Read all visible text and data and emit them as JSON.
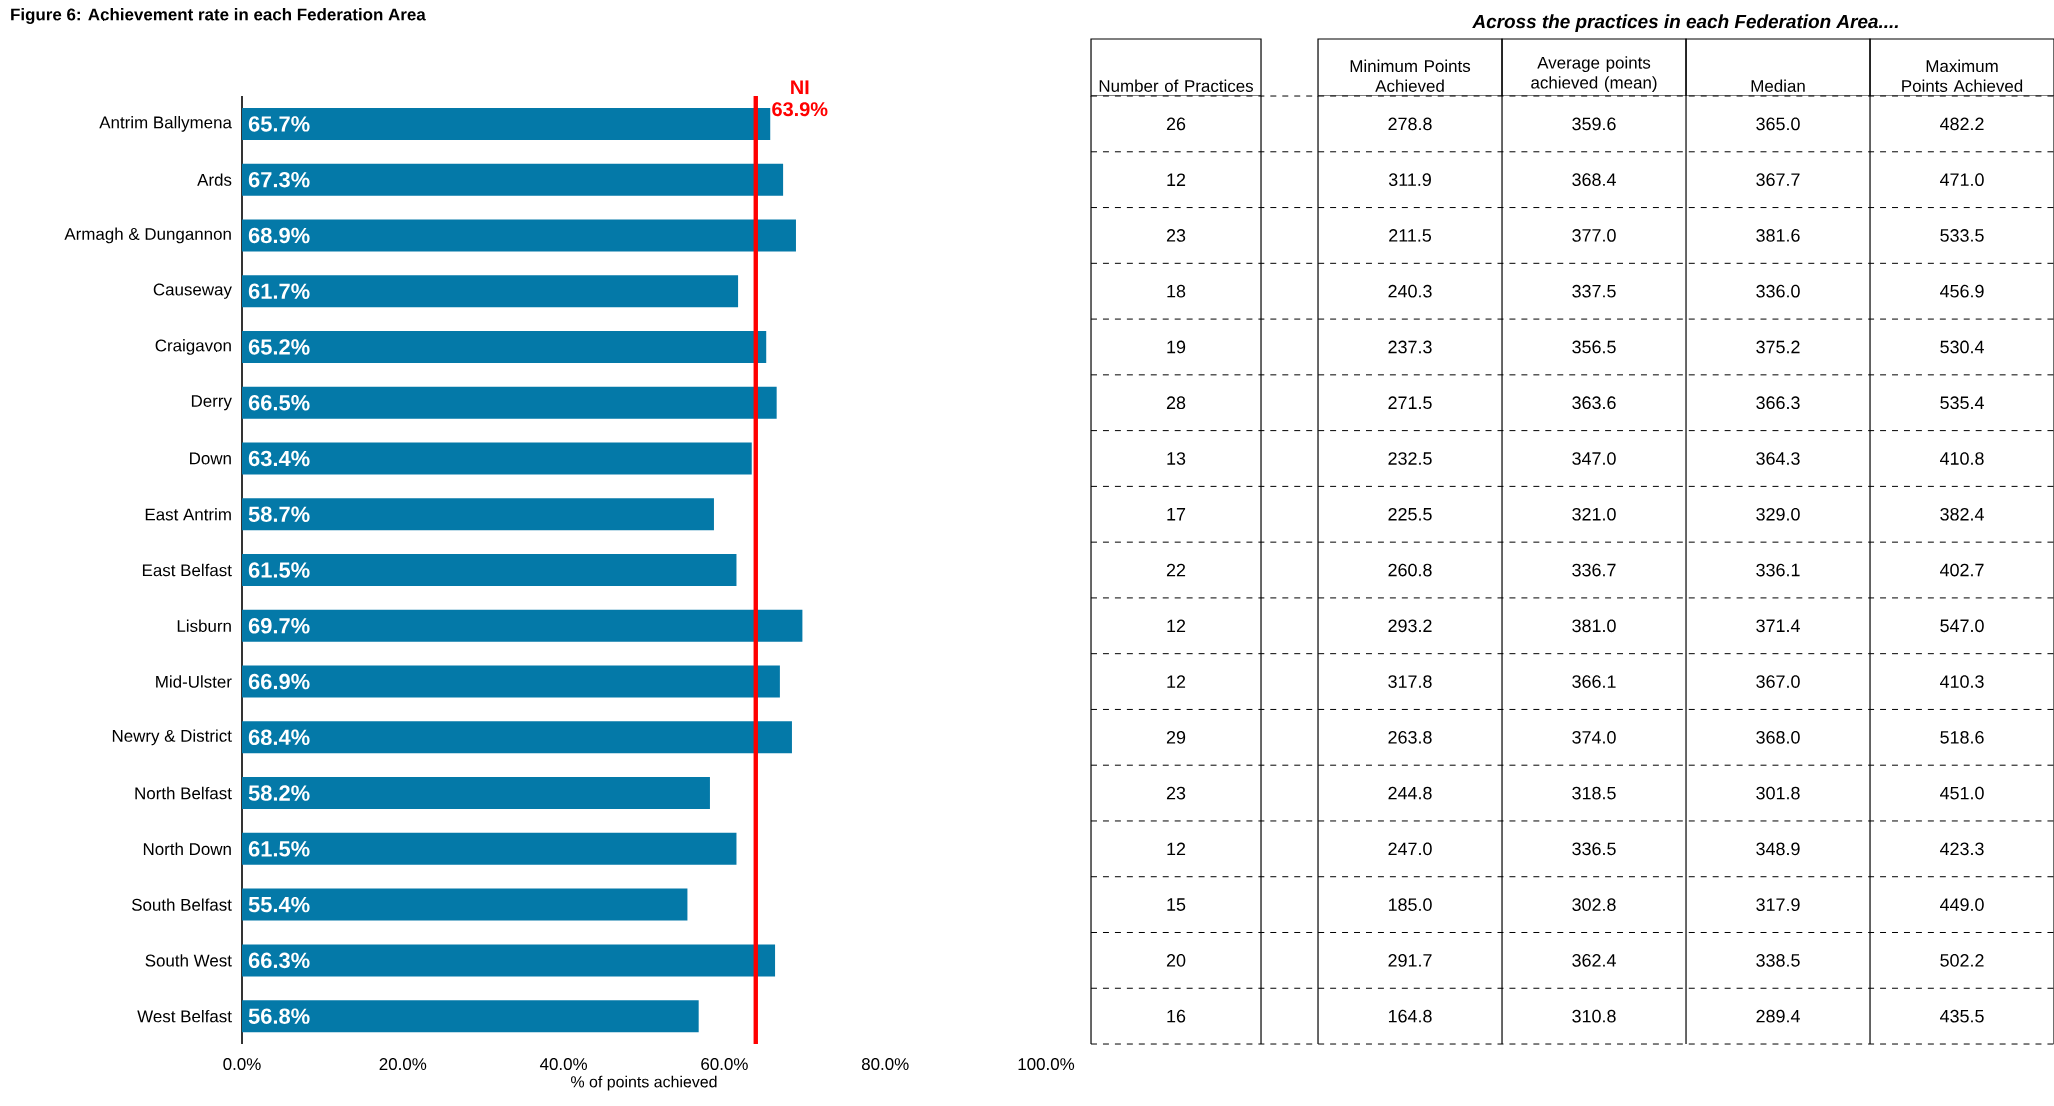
{
  "chart_data": [
    {
      "type": "bar",
      "orientation": "horizontal",
      "title": "Figure 6: Achievement rate in each Federation Area",
      "xlabel": "% of points achieved",
      "categories": [
        "Antrim Ballymena",
        "Ards",
        "Armagh & Dungannon",
        "Causeway",
        "Craigavon",
        "Derry",
        "Down",
        "East Antrim",
        "East Belfast",
        "Lisburn",
        "Mid-Ulster",
        "Newry & District",
        "North Belfast",
        "North Down",
        "South Belfast",
        "South West",
        "West Belfast"
      ],
      "values": [
        65.7,
        67.3,
        68.9,
        61.7,
        65.2,
        66.5,
        63.4,
        58.7,
        61.5,
        69.7,
        66.9,
        68.4,
        58.2,
        61.5,
        55.4,
        66.3,
        56.8
      ],
      "value_labels": [
        "65.7%",
        "67.3%",
        "68.9%",
        "61.7%",
        "65.2%",
        "66.5%",
        "63.4%",
        "58.7%",
        "61.5%",
        "69.7%",
        "66.9%",
        "68.4%",
        "58.2%",
        "61.5%",
        "55.4%",
        "66.3%",
        "56.8%"
      ],
      "color": "#0479a8",
      "xlim": [
        0,
        100
      ],
      "xticks": [
        {
          "value": 0,
          "label": "0.0%"
        },
        {
          "value": 20,
          "label": "20.0%"
        },
        {
          "value": 40,
          "label": "40.0%"
        },
        {
          "value": 60,
          "label": "60.0%"
        },
        {
          "value": 80,
          "label": "80.0%"
        },
        {
          "value": 100,
          "label": "100.0%"
        }
      ],
      "ref_lines": [
        {
          "axis": "x",
          "value": 63.9,
          "label": "NI 63.9%",
          "color": "#ff0000"
        }
      ],
      "grid": false
    },
    {
      "type": "other",
      "title": "Across the practices in each Federation Area....",
      "categories": [
        "Number of Practices",
        null,
        "Minimum Points Achieved",
        "Average points achieved (mean)",
        "Median",
        "Maximum Points Achieved"
      ],
      "cell_labels": [
        [
          "26",
          null,
          "278.8",
          "359.6",
          "365.0",
          "482.2"
        ],
        [
          "12",
          null,
          "311.9",
          "368.4",
          "367.7",
          "471.0"
        ],
        [
          "23",
          null,
          "211.5",
          "377.0",
          "381.6",
          "533.5"
        ],
        [
          "18",
          null,
          "240.3",
          "337.5",
          "336.0",
          "456.9"
        ],
        [
          "19",
          null,
          "237.3",
          "356.5",
          "375.2",
          "530.4"
        ],
        [
          "28",
          null,
          "271.5",
          "363.6",
          "366.3",
          "535.4"
        ],
        [
          "13",
          null,
          "232.5",
          "347.0",
          "364.3",
          "410.8"
        ],
        [
          "17",
          null,
          "225.5",
          "321.0",
          "329.0",
          "382.4"
        ],
        [
          "22",
          null,
          "260.8",
          "336.7",
          "336.1",
          "402.7"
        ],
        [
          "12",
          null,
          "293.2",
          "381.0",
          "371.4",
          "547.0"
        ],
        [
          "12",
          null,
          "317.8",
          "366.1",
          "367.0",
          "410.3"
        ],
        [
          "29",
          null,
          "263.8",
          "374.0",
          "368.0",
          "518.6"
        ],
        [
          "23",
          null,
          "244.8",
          "318.5",
          "301.8",
          "451.0"
        ],
        [
          "12",
          null,
          "247.0",
          "336.5",
          "348.9",
          "423.3"
        ],
        [
          "15",
          null,
          "185.0",
          "302.8",
          "317.9",
          "449.0"
        ],
        [
          "20",
          null,
          "291.7",
          "362.4",
          "338.5",
          "502.2"
        ],
        [
          "16",
          null,
          "164.8",
          "310.8",
          "289.4",
          "435.5"
        ]
      ]
    }
  ]
}
